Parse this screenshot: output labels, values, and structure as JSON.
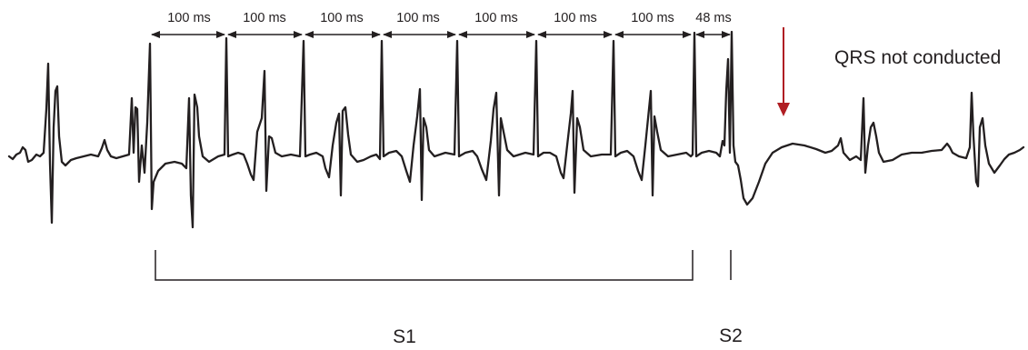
{
  "intervals": [
    {
      "label": "100 ms"
    },
    {
      "label": "100 ms"
    },
    {
      "label": "100 ms"
    },
    {
      "label": "100 ms"
    },
    {
      "label": "100 ms"
    },
    {
      "label": "100 ms"
    },
    {
      "label": "100 ms"
    },
    {
      "label": "48 ms"
    }
  ],
  "annotation": {
    "text": "QRS not conducted",
    "arrow_color": "#b01e23"
  },
  "phases": {
    "s1": "S1",
    "s2": "S2"
  },
  "colors": {
    "trace": "#231f20",
    "lines": "#231f20"
  }
}
